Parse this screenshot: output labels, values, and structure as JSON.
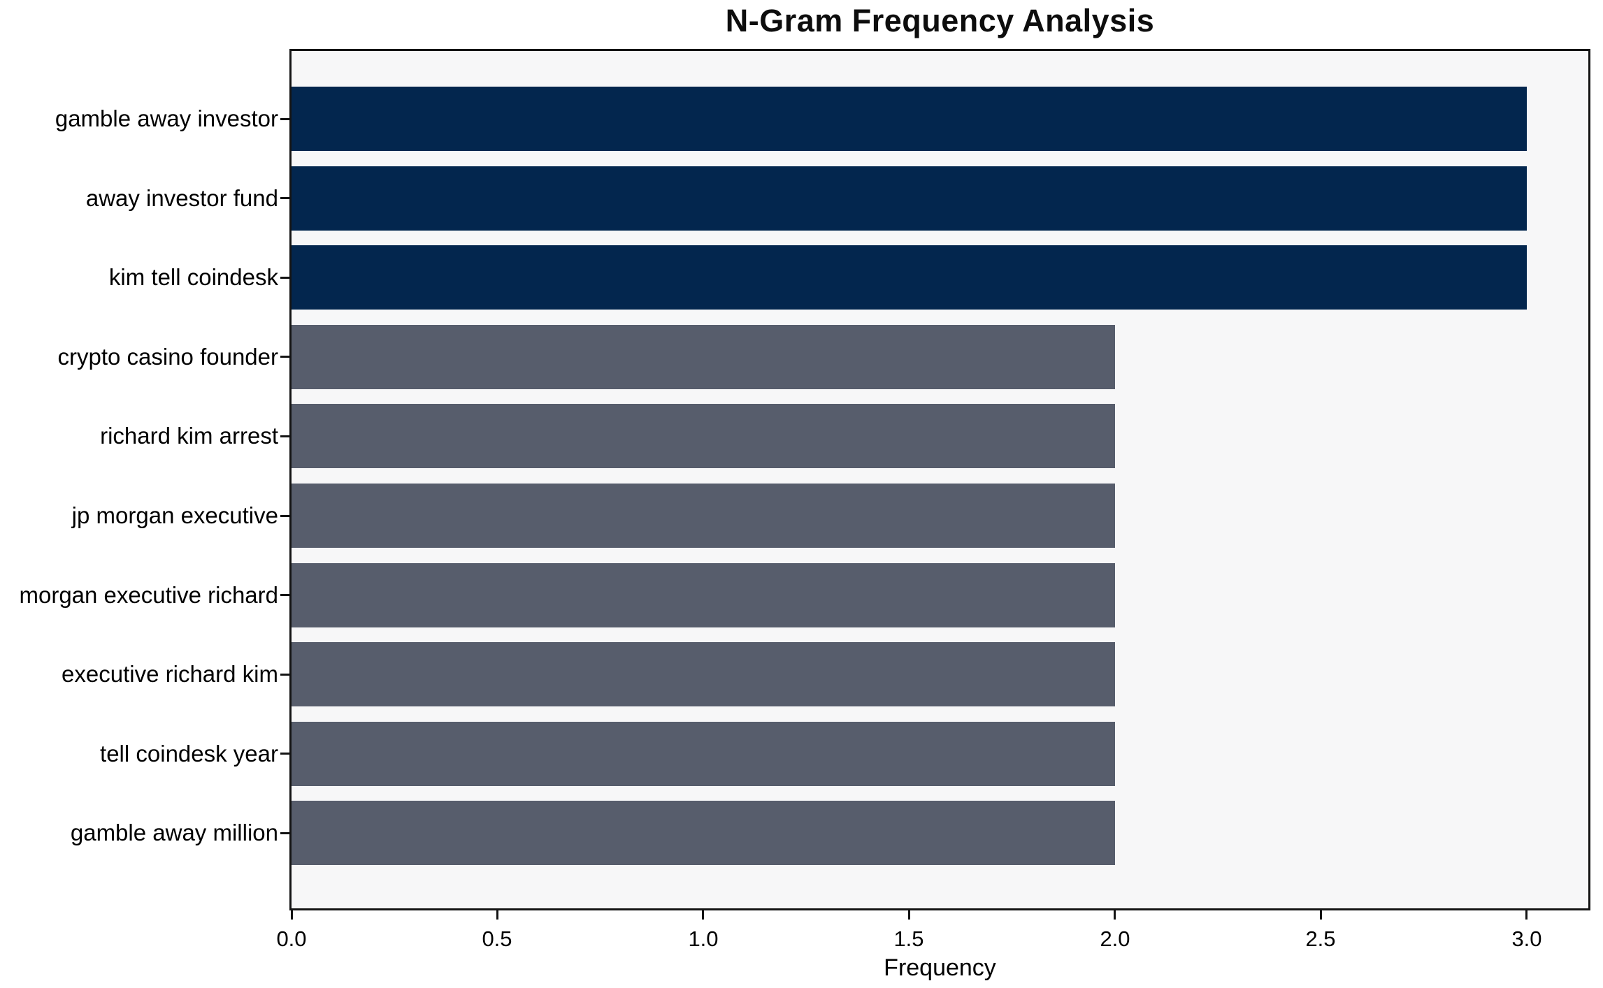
{
  "chart_data": {
    "type": "bar",
    "orientation": "horizontal",
    "title": "N-Gram Frequency Analysis",
    "xlabel": "Frequency",
    "ylabel": "",
    "categories": [
      "gamble away investor",
      "away investor fund",
      "kim tell coindesk",
      "crypto casino founder",
      "richard kim arrest",
      "jp morgan executive",
      "morgan executive richard",
      "executive richard kim",
      "tell coindesk year",
      "gamble away million"
    ],
    "values": [
      3,
      3,
      3,
      2,
      2,
      2,
      2,
      2,
      2,
      2
    ],
    "bar_colors": [
      "#03264e",
      "#03264e",
      "#03264e",
      "#575d6c",
      "#575d6c",
      "#575d6c",
      "#575d6c",
      "#575d6c",
      "#575d6c",
      "#575d6c"
    ],
    "xlim": [
      0,
      3.15
    ],
    "xticks": [
      0,
      0.5,
      1.0,
      1.5,
      2.0,
      2.5,
      3.0
    ],
    "xtick_labels": [
      "0.0",
      "0.5",
      "1.0",
      "1.5",
      "2.0",
      "2.5",
      "3.0"
    ],
    "grid": false,
    "legend": null,
    "colors": {
      "highlight": "#03264e",
      "base": "#575d6c",
      "plot_background": "#f7f7f8",
      "figure_background": "#ffffff",
      "spine": "#141414",
      "text": "#000000"
    }
  }
}
